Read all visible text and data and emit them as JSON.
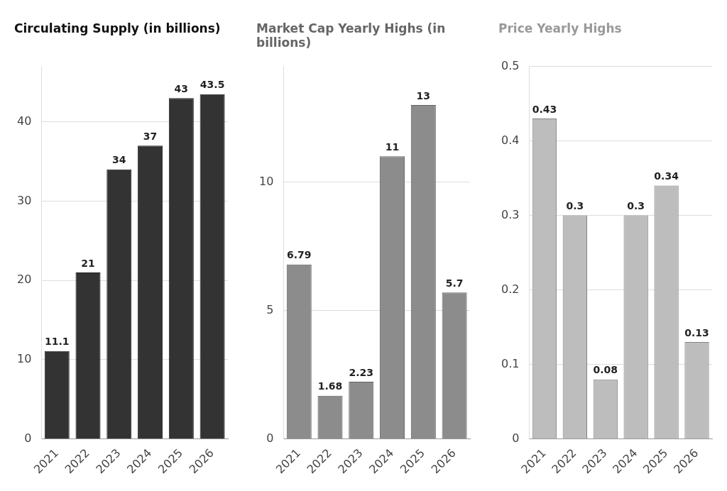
{
  "chart_data": [
    {
      "type": "bar",
      "title": "Circulating Supply (in billions)",
      "categories": [
        "2021",
        "2022",
        "2023",
        "2024",
        "2025",
        "2026"
      ],
      "values": [
        11.1,
        21,
        34,
        37,
        43,
        43.5
      ],
      "color": "#333333",
      "ylim": [
        0,
        47
      ],
      "yticks": [
        0,
        10,
        20,
        30,
        40
      ],
      "grid": "y",
      "data_labels": true
    },
    {
      "type": "bar",
      "title": "Market Cap Yearly Highs (in billions)",
      "categories": [
        "2021",
        "2022",
        "2023",
        "2024",
        "2025",
        "2026"
      ],
      "values": [
        6.79,
        1.68,
        2.23,
        11,
        13,
        5.7
      ],
      "color": "#8c8c8c",
      "ylim": [
        0,
        14.5
      ],
      "yticks": [
        0,
        5,
        10
      ],
      "grid": "y",
      "data_labels": true
    },
    {
      "type": "bar",
      "title": "Price Yearly Highs",
      "categories": [
        "2021",
        "2022",
        "2023",
        "2024",
        "2025",
        "2026"
      ],
      "values": [
        0.43,
        0.3,
        0.08,
        0.3,
        0.34,
        0.13
      ],
      "color": "#bdbdbd",
      "ylim": [
        0,
        0.5
      ],
      "yticks": [
        0,
        0.1,
        0.2,
        0.3,
        0.4,
        0.5
      ],
      "grid": "y",
      "data_labels": true
    }
  ]
}
